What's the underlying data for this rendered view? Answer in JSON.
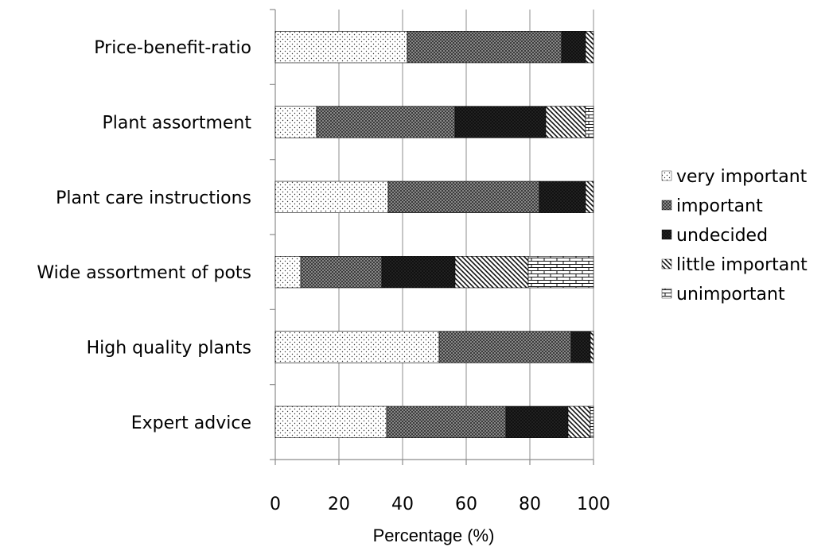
{
  "chart_data": {
    "type": "bar",
    "orientation": "horizontal",
    "stacked": true,
    "categories": [
      "Price-benefit-ratio",
      "Plant assortment",
      "Plant care instructions",
      "Wide assortment of pots",
      "High quality plants",
      "Expert advice"
    ],
    "series": [
      {
        "name": "very important",
        "pattern": "dots",
        "values": [
          41.5,
          13,
          35.5,
          8,
          51.5,
          35
        ]
      },
      {
        "name": "important",
        "pattern": "crosshatch",
        "values": [
          48.5,
          43.5,
          47.5,
          25.5,
          41.5,
          37.5
        ]
      },
      {
        "name": "undecided",
        "pattern": "dark-dots",
        "values": [
          7.5,
          28.5,
          14.5,
          23,
          6,
          19.5
        ]
      },
      {
        "name": "little important",
        "pattern": "diagonal",
        "values": [
          2.5,
          12.5,
          2.5,
          23,
          1,
          7
        ]
      },
      {
        "name": "unimportant",
        "pattern": "bricks",
        "values": [
          0,
          2.5,
          0,
          20.5,
          0,
          1
        ]
      }
    ],
    "xlabel": "Percentage (%)",
    "ylabel": "",
    "xlim": [
      0,
      100
    ],
    "xticks": [
      "0",
      "20",
      "40",
      "60",
      "80",
      "100"
    ],
    "grid": "vertical",
    "legend": "right",
    "colors": {
      "axis": "#8c8c8c",
      "grid": "#8c8c8c",
      "bar_outline": "#000000"
    }
  }
}
